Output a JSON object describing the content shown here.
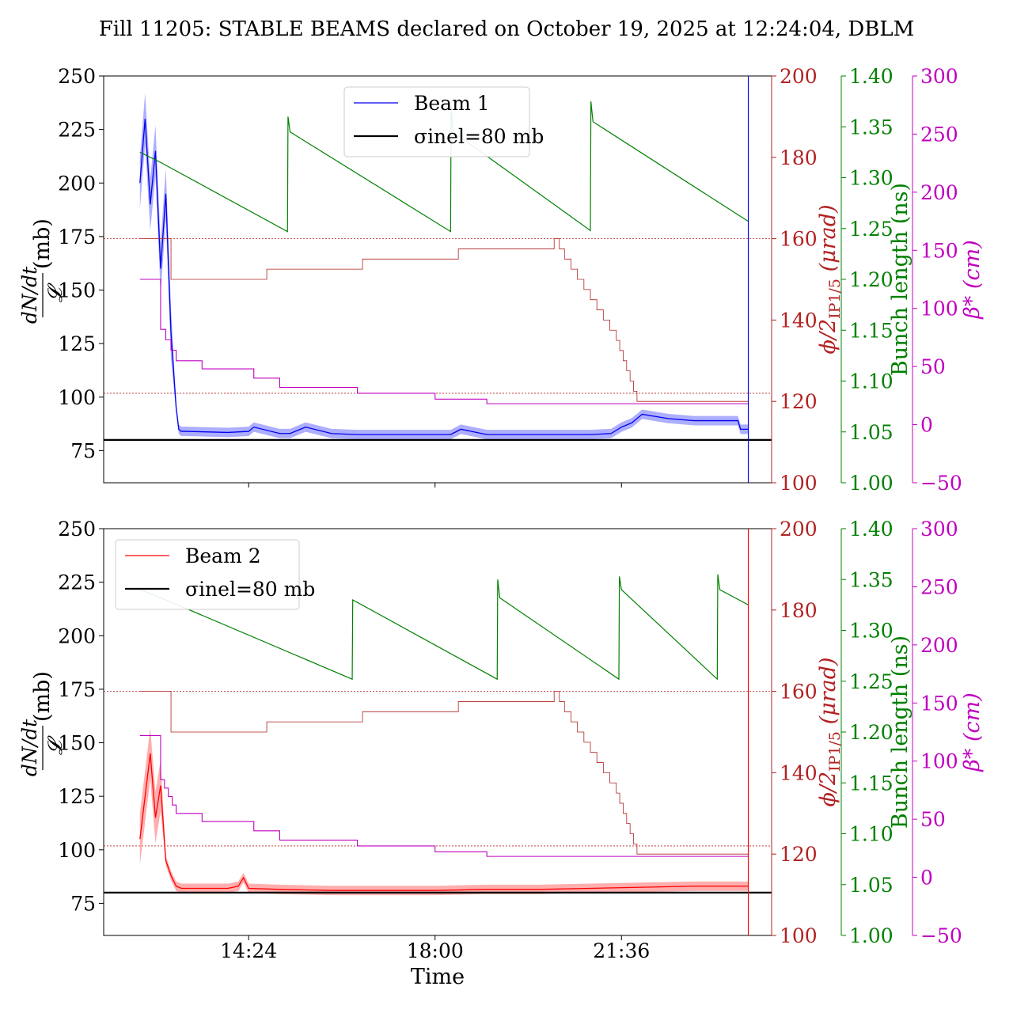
{
  "title": "Fill 11205: STABLE BEAMS declared on October 19, 2025 at 12:24:04, DBLM",
  "x_label": "Time",
  "x_ticks": [
    "14:24",
    "18:00",
    "21:36"
  ],
  "left_axis": {
    "label": "dN/dt / 𝓛 (mb)",
    "range": [
      60,
      250
    ],
    "ticks": [
      "75",
      "100",
      "125",
      "150",
      "175",
      "200",
      "225",
      "250"
    ]
  },
  "axis_crossing_angle": {
    "label": "ϕ/2IP1/5 (μrad)",
    "range": [
      100,
      200
    ],
    "ticks": [
      "100",
      "120",
      "140",
      "160",
      "180",
      "200"
    ],
    "color": "#b22222"
  },
  "axis_bunch_length": {
    "label": "Bunch length (ns)",
    "range": [
      1.0,
      1.4
    ],
    "ticks": [
      "1.00",
      "1.05",
      "1.10",
      "1.15",
      "1.20",
      "1.25",
      "1.30",
      "1.35",
      "1.40"
    ],
    "color": "#008000"
  },
  "axis_beta_star": {
    "label": "β* (cm)",
    "range": [
      -50,
      300
    ],
    "ticks": [
      "−50",
      "0",
      "50",
      "100",
      "150",
      "200",
      "250",
      "300"
    ],
    "color": "#c000c0"
  },
  "colors": {
    "beam1": "#0000ee",
    "beam1_band": "#9a9aff",
    "beam2": "#ff0000",
    "beam2_band": "#ff9a9a",
    "reference": "#000000",
    "crossing": "#b22222",
    "bunch": "#008000",
    "beta": "#c000c0"
  },
  "panels": [
    {
      "legend_series": "Beam 1",
      "legend_ref": "σinel=80 mb"
    },
    {
      "legend_series": "Beam 2",
      "legend_ref": "σinel=80 mb"
    }
  ],
  "chart_data": [
    {
      "type": "line",
      "x_unit": "time (hours, 24h clock)",
      "x_range": [
        11.6,
        24.5
      ],
      "series": [
        {
          "name": "Beam 1",
          "axis": "left",
          "x": [
            12.3,
            12.4,
            12.5,
            12.6,
            12.7,
            12.8,
            12.9,
            13.0,
            13.05,
            13.1,
            13.2,
            14.0,
            14.4,
            14.5,
            15.0,
            15.2,
            15.5,
            16.0,
            16.5,
            17.0,
            18.0,
            18.3,
            18.5,
            19.0,
            20.0,
            21.0,
            21.4,
            21.6,
            21.8,
            22.0,
            22.5,
            23.0,
            23.5,
            23.85,
            23.9,
            24.05
          ],
          "y": [
            200,
            230,
            190,
            215,
            160,
            195,
            130,
            95,
            85,
            84,
            84,
            83.5,
            84,
            86,
            83,
            83,
            86,
            83,
            82.5,
            82.5,
            82.5,
            82.5,
            85,
            82.5,
            82.5,
            82.5,
            83,
            86,
            88,
            92,
            90,
            89,
            89,
            89,
            85,
            85
          ]
        },
        {
          "name": "σinel=80 mb",
          "axis": "left",
          "x": [
            11.6,
            24.5
          ],
          "y": [
            80,
            80
          ]
        },
        {
          "name": "Bunch length",
          "axis": "bunch_length",
          "x": [
            12.3,
            12.7,
            15.15,
            15.16,
            15.2,
            18.3,
            18.31,
            18.35,
            21.0,
            21.01,
            21.05,
            24.05
          ],
          "y": [
            1.325,
            1.315,
            1.247,
            1.36,
            1.345,
            1.247,
            1.37,
            1.345,
            1.248,
            1.375,
            1.355,
            1.257
          ]
        },
        {
          "name": "Crossing angle",
          "axis": "crossing_angle",
          "x": [
            12.3,
            12.9,
            12.9,
            20.3,
            20.5,
            21.5,
            21.9,
            24.05
          ],
          "y": [
            160,
            160,
            150,
            160,
            155,
            135,
            120,
            120
          ]
        },
        {
          "name": "β*",
          "axis": "beta_star",
          "x": [
            12.3,
            12.7,
            12.7,
            13.0,
            13.5,
            14.5,
            15.0,
            16.5,
            18.0,
            19.0,
            24.05
          ],
          "y": [
            125,
            125,
            82,
            55,
            48,
            40,
            32,
            27,
            22,
            18,
            18
          ]
        }
      ],
      "reference_lines": [
        {
          "axis": "crossing_angle",
          "y": 160
        },
        {
          "axis": "crossing_angle",
          "y": 122
        }
      ]
    },
    {
      "type": "line",
      "x_unit": "time (hours, 24h clock)",
      "x_range": [
        11.6,
        24.5
      ],
      "series": [
        {
          "name": "Beam 2",
          "axis": "left",
          "x": [
            12.3,
            12.4,
            12.5,
            12.6,
            12.7,
            12.8,
            12.9,
            13.0,
            13.1,
            13.3,
            13.6,
            14.0,
            14.2,
            14.3,
            14.4,
            15.0,
            16.0,
            17.0,
            18.0,
            19.0,
            20.0,
            21.0,
            22.0,
            23.0,
            24.05
          ],
          "y": [
            105,
            125,
            145,
            115,
            130,
            95,
            88,
            83,
            82,
            82,
            82,
            82,
            83,
            87,
            82,
            81.5,
            81,
            81,
            81,
            81.5,
            81.5,
            82,
            82.5,
            83,
            83
          ]
        },
        {
          "name": "σinel=80 mb",
          "axis": "left",
          "x": [
            11.6,
            24.5
          ],
          "y": [
            80,
            80
          ]
        },
        {
          "name": "Bunch length",
          "axis": "bunch_length",
          "x": [
            12.3,
            12.8,
            16.4,
            16.41,
            19.2,
            19.21,
            19.25,
            21.55,
            21.56,
            21.6,
            23.45,
            23.46,
            23.5,
            24.05
          ],
          "y": [
            1.34,
            1.33,
            1.252,
            1.33,
            1.252,
            1.35,
            1.332,
            1.252,
            1.353,
            1.34,
            1.252,
            1.355,
            1.34,
            1.325
          ]
        },
        {
          "name": "Crossing angle",
          "axis": "crossing_angle",
          "x": [
            12.3,
            12.9,
            12.9,
            20.3,
            20.5,
            21.5,
            21.9,
            24.05
          ],
          "y": [
            160,
            160,
            150,
            160,
            155,
            135,
            120,
            120
          ]
        },
        {
          "name": "β*",
          "axis": "beta_star",
          "x": [
            12.3,
            12.7,
            12.7,
            13.0,
            13.5,
            14.5,
            15.0,
            16.5,
            18.0,
            19.0,
            21.9,
            24.05
          ],
          "y": [
            122,
            122,
            84,
            55,
            48,
            40,
            32,
            27,
            22,
            18,
            18,
            18
          ]
        }
      ],
      "reference_lines": [
        {
          "axis": "crossing_angle",
          "y": 160
        },
        {
          "axis": "crossing_angle",
          "y": 122
        }
      ]
    }
  ]
}
